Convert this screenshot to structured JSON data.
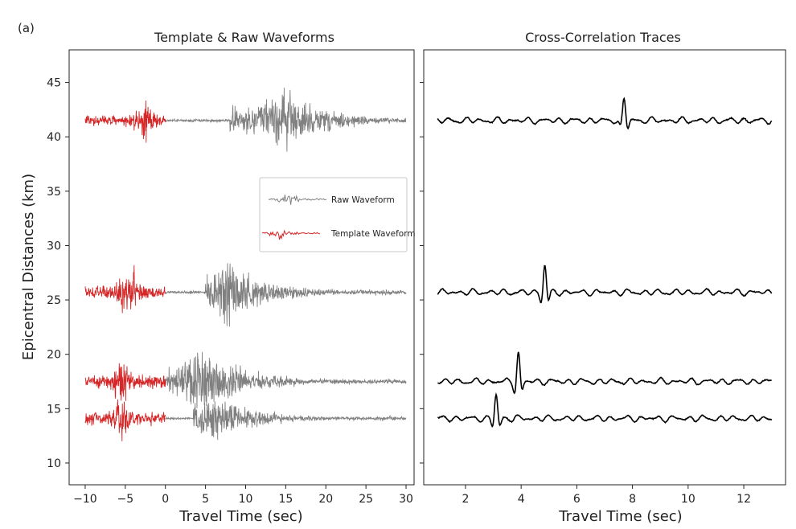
{
  "panel_label": "(a)",
  "chart_data": [
    {
      "type": "line",
      "title": "Template & Raw Waveforms",
      "xlabel": "Travel Time (sec)",
      "ylabel": "Epicentral Distances (km)",
      "xlim": [
        -12,
        31
      ],
      "ylim": [
        8,
        48
      ],
      "xticks": [
        -10,
        -5,
        0,
        5,
        10,
        15,
        20,
        25,
        30
      ],
      "yticks": [
        10,
        15,
        20,
        25,
        30,
        35,
        40,
        45
      ],
      "xtick_labels": [
        "−10",
        "−5",
        "0",
        "5",
        "10",
        "15",
        "20",
        "25",
        "30"
      ],
      "ytick_labels": [
        "10",
        "15",
        "20",
        "25",
        "30",
        "35",
        "40",
        "45"
      ],
      "grid": false,
      "legend": {
        "position": "center-right",
        "entries": [
          {
            "label": "Raw Waveform",
            "color": "#808080"
          },
          {
            "label": "Template Waveform",
            "color": "#d62728"
          }
        ]
      },
      "series": [
        {
          "name": "Raw Waveform",
          "color": "#808080",
          "x_range": [
            0,
            30
          ],
          "traces": [
            {
              "baseline": 41.5,
              "onset": 8.0,
              "peak": 15.0,
              "amplitude": 4.6
            },
            {
              "baseline": 25.7,
              "onset": 5.0,
              "peak": 8.0,
              "amplitude": 4.8
            },
            {
              "baseline": 17.5,
              "onset": 0.0,
              "peak": 5.0,
              "amplitude": 5.0
            },
            {
              "baseline": 14.1,
              "onset": 3.5,
              "peak": 6.0,
              "amplitude": 3.8
            }
          ]
        },
        {
          "name": "Template Waveform",
          "color": "#d62728",
          "x_range": [
            -10,
            0
          ],
          "traces": [
            {
              "baseline": 41.5,
              "peak": -2.5,
              "amplitude": 3.6
            },
            {
              "baseline": 25.7,
              "peak": -4.5,
              "amplitude": 4.7
            },
            {
              "baseline": 17.5,
              "peak": -5.5,
              "amplitude": 5.0
            },
            {
              "baseline": 14.1,
              "peak": -5.5,
              "amplitude": 4.5
            }
          ]
        }
      ]
    },
    {
      "type": "line",
      "title": "Cross-Correlation Traces",
      "xlabel": "Travel Time (sec)",
      "xlim": [
        0.5,
        13.5
      ],
      "ylim": [
        8,
        48
      ],
      "xticks": [
        2,
        4,
        6,
        8,
        10,
        12
      ],
      "xtick_labels": [
        "2",
        "4",
        "6",
        "8",
        "10",
        "12"
      ],
      "grid": false,
      "series": [
        {
          "name": "",
          "color": "#000000",
          "x_range": [
            1,
            13
          ],
          "traces": [
            {
              "baseline": 41.5,
              "peak": 7.7,
              "amplitude": 2.0
            },
            {
              "baseline": 25.7,
              "peak": 4.85,
              "amplitude": 2.5
            },
            {
              "baseline": 17.5,
              "peak": 3.9,
              "amplitude": 2.6
            },
            {
              "baseline": 14.1,
              "peak": 3.1,
              "amplitude": 2.2
            }
          ]
        }
      ]
    }
  ]
}
